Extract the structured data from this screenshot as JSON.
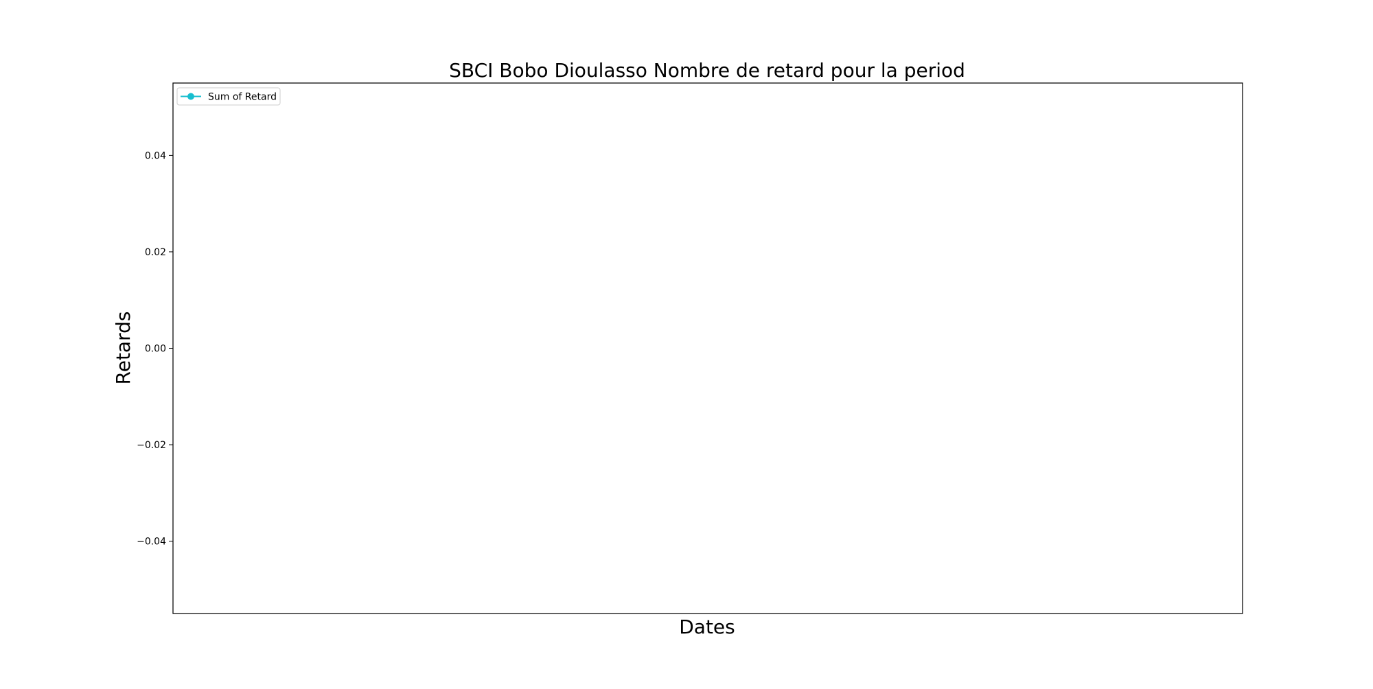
{
  "chart_data": {
    "type": "line",
    "title": "SBCI Bobo Dioulasso Nombre de retard pour la period",
    "xlabel": "Dates",
    "ylabel": "Retards",
    "x": [],
    "series": [
      {
        "name": "Sum of Retard",
        "values": [],
        "color": "#17becf",
        "marker": "circle"
      }
    ],
    "ylim": [
      -0.055,
      0.055
    ],
    "yticks": [
      -0.04,
      -0.02,
      0.0,
      0.02,
      0.04
    ],
    "ytick_labels": [
      "−0.04",
      "−0.02",
      "0.00",
      "0.02",
      "0.04"
    ],
    "xticks": [],
    "grid": false,
    "legend_position": "upper-left"
  }
}
